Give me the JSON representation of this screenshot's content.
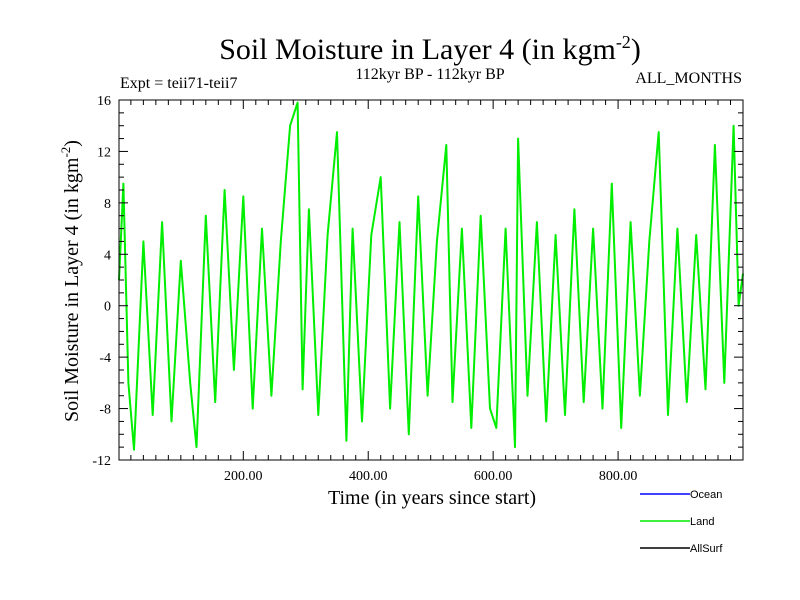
{
  "header": {
    "title_main": "Soil Moisture in Layer 4 (in kgm",
    "title_sup": "-2",
    "title_close": ")",
    "subtitle": "112kyr BP - 112kyr BP",
    "expt": "Expt = teii71-teii7",
    "months": "ALL_MONTHS"
  },
  "chart_data": {
    "type": "line",
    "title": "Soil Moisture in Layer 4 (in kgm-2)",
    "subtitle": "112kyr BP - 112kyr BP",
    "xlabel": "Time (in years since start)",
    "ylabel": "Soil Moisture in Layer 4 (in kgm-2)",
    "xlim": [
      1,
      1000
    ],
    "ylim": [
      -12,
      16
    ],
    "xticks": [
      200,
      400,
      600,
      800
    ],
    "xtick_labels": [
      "200.00",
      "400.00",
      "600.00",
      "800.00"
    ],
    "yticks": [
      -12,
      -8,
      -4,
      0,
      4,
      8,
      12,
      16
    ],
    "ytick_labels": [
      "-12",
      "-8",
      "-4",
      "0",
      "4",
      "8",
      "12",
      "16"
    ],
    "grid": false,
    "legend_position": "bottom-right",
    "series": [
      {
        "name": "Ocean",
        "color": "#0000ff",
        "values": []
      },
      {
        "name": "Land",
        "color": "#00ee00",
        "x": [
          1,
          8,
          16,
          25,
          40,
          55,
          70,
          85,
          100,
          115,
          125,
          140,
          155,
          170,
          185,
          200,
          215,
          230,
          245,
          260,
          275,
          287,
          295,
          305,
          320,
          335,
          350,
          365,
          375,
          390,
          405,
          420,
          435,
          450,
          465,
          480,
          495,
          510,
          525,
          535,
          550,
          565,
          580,
          595,
          605,
          620,
          635,
          640,
          655,
          670,
          685,
          700,
          715,
          730,
          745,
          760,
          775,
          790,
          805,
          820,
          835,
          850,
          865,
          880,
          895,
          910,
          925,
          940,
          955,
          970,
          985,
          993,
          1000
        ],
        "values": [
          2.0,
          9.5,
          -6.0,
          -11.2,
          5.0,
          -8.5,
          6.5,
          -9.0,
          3.5,
          -6.0,
          -11.0,
          7.0,
          -7.5,
          9.0,
          -5.0,
          8.5,
          -8.0,
          6.0,
          -7.0,
          5.0,
          14.0,
          15.8,
          -6.5,
          7.5,
          -8.5,
          5.5,
          13.5,
          -10.5,
          6.0,
          -9.0,
          5.5,
          10.0,
          -8.0,
          6.5,
          -10.0,
          8.5,
          -7.0,
          5.0,
          12.5,
          -7.5,
          6.0,
          -9.5,
          7.0,
          -8.0,
          -9.5,
          6.0,
          -11.0,
          13.0,
          -7.0,
          6.5,
          -9.0,
          5.5,
          -8.5,
          7.5,
          -7.5,
          6.0,
          -8.0,
          9.5,
          -9.5,
          6.5,
          -7.0,
          5.0,
          13.5,
          -8.5,
          6.0,
          -7.5,
          5.5,
          -6.5,
          12.5,
          -6.0,
          14.0,
          0.0,
          2.5
        ]
      },
      {
        "name": "AllSurf",
        "color": "#000000",
        "values": []
      }
    ]
  }
}
